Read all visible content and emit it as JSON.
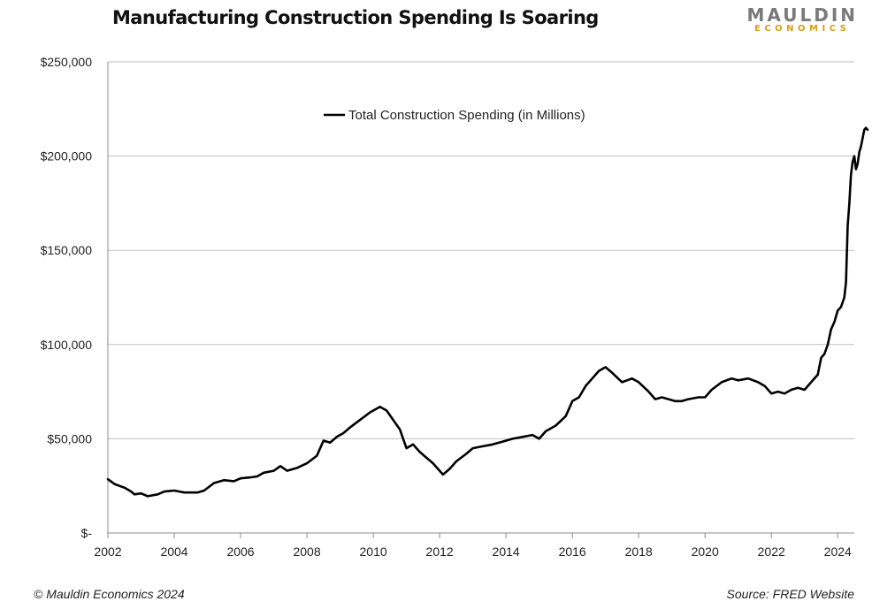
{
  "header": {
    "title": "Manufacturing Construction Spending Is Soaring",
    "logo_top": "MAULDIN",
    "logo_bottom": "ECONOMICS"
  },
  "footer": {
    "copyright": "© Mauldin Economics 2024",
    "source": "Source: FRED Website"
  },
  "colors": {
    "line": "#000000",
    "grid": "#bfbfbf",
    "logo_gray": "#7a7a7a",
    "logo_gold": "#d4a017"
  },
  "chart_data": {
    "type": "line",
    "title": "Manufacturing Construction Spending Is Soaring",
    "xlabel": "",
    "ylabel": "",
    "xlim": [
      2002,
      2024.5
    ],
    "ylim": [
      0,
      250000
    ],
    "grid": true,
    "legend_position": "top-center",
    "y_ticks": [
      0,
      50000,
      100000,
      150000,
      200000,
      250000
    ],
    "y_tick_labels": [
      "$-",
      "$50,000",
      "$100,000",
      "$150,000",
      "$200,000",
      "$250,000"
    ],
    "x_ticks": [
      2002,
      2004,
      2006,
      2008,
      2010,
      2012,
      2014,
      2016,
      2018,
      2020,
      2022,
      2024
    ],
    "x_tick_labels": [
      "2002",
      "2004",
      "2006",
      "2008",
      "2010",
      "2012",
      "2014",
      "2016",
      "2018",
      "2020",
      "2022",
      "2024"
    ],
    "series": [
      {
        "name": "Total Construction Spending (in Millions)",
        "points": [
          [
            2002.0,
            28500
          ],
          [
            2002.2,
            26000
          ],
          [
            2002.5,
            24000
          ],
          [
            2002.7,
            22000
          ],
          [
            2002.8,
            20500
          ],
          [
            2003.0,
            21000
          ],
          [
            2003.2,
            19500
          ],
          [
            2003.5,
            20500
          ],
          [
            2003.7,
            22000
          ],
          [
            2004.0,
            22500
          ],
          [
            2004.3,
            21500
          ],
          [
            2004.7,
            21500
          ],
          [
            2004.9,
            22500
          ],
          [
            2005.2,
            26500
          ],
          [
            2005.5,
            28000
          ],
          [
            2005.8,
            27500
          ],
          [
            2006.0,
            29000
          ],
          [
            2006.3,
            29500
          ],
          [
            2006.5,
            30000
          ],
          [
            2006.7,
            32000
          ],
          [
            2007.0,
            33000
          ],
          [
            2007.2,
            35500
          ],
          [
            2007.4,
            33000
          ],
          [
            2007.7,
            34500
          ],
          [
            2008.0,
            37000
          ],
          [
            2008.3,
            41000
          ],
          [
            2008.5,
            49000
          ],
          [
            2008.7,
            48000
          ],
          [
            2008.9,
            51000
          ],
          [
            2009.1,
            53000
          ],
          [
            2009.3,
            56000
          ],
          [
            2009.6,
            60000
          ],
          [
            2009.9,
            64000
          ],
          [
            2010.2,
            67000
          ],
          [
            2010.4,
            65000
          ],
          [
            2010.6,
            60000
          ],
          [
            2010.8,
            55000
          ],
          [
            2011.0,
            45000
          ],
          [
            2011.2,
            47000
          ],
          [
            2011.4,
            43000
          ],
          [
            2011.6,
            40000
          ],
          [
            2011.8,
            37000
          ],
          [
            2012.0,
            33000
          ],
          [
            2012.1,
            31000
          ],
          [
            2012.3,
            34000
          ],
          [
            2012.5,
            38000
          ],
          [
            2012.8,
            42000
          ],
          [
            2013.0,
            45000
          ],
          [
            2013.3,
            46000
          ],
          [
            2013.6,
            47000
          ],
          [
            2013.9,
            48500
          ],
          [
            2014.2,
            50000
          ],
          [
            2014.5,
            51000
          ],
          [
            2014.8,
            52000
          ],
          [
            2015.0,
            50000
          ],
          [
            2015.2,
            54000
          ],
          [
            2015.5,
            57000
          ],
          [
            2015.8,
            62000
          ],
          [
            2016.0,
            70000
          ],
          [
            2016.2,
            72000
          ],
          [
            2016.4,
            78000
          ],
          [
            2016.6,
            82000
          ],
          [
            2016.8,
            86000
          ],
          [
            2017.0,
            88000
          ],
          [
            2017.2,
            85000
          ],
          [
            2017.5,
            80000
          ],
          [
            2017.8,
            82000
          ],
          [
            2018.0,
            80000
          ],
          [
            2018.3,
            75000
          ],
          [
            2018.5,
            71000
          ],
          [
            2018.7,
            72000
          ],
          [
            2018.9,
            71000
          ],
          [
            2019.1,
            70000
          ],
          [
            2019.3,
            70000
          ],
          [
            2019.5,
            71000
          ],
          [
            2019.8,
            72000
          ],
          [
            2020.0,
            72000
          ],
          [
            2020.2,
            76000
          ],
          [
            2020.5,
            80000
          ],
          [
            2020.8,
            82000
          ],
          [
            2021.0,
            81000
          ],
          [
            2021.3,
            82000
          ],
          [
            2021.6,
            80000
          ],
          [
            2021.8,
            78000
          ],
          [
            2022.0,
            74000
          ],
          [
            2022.2,
            75000
          ],
          [
            2022.4,
            74000
          ],
          [
            2022.6,
            76000
          ],
          [
            2022.8,
            77000
          ],
          [
            2023.0,
            76000
          ],
          [
            2023.2,
            80000
          ],
          [
            2023.4,
            84000
          ],
          [
            2023.5,
            93000
          ],
          [
            2023.6,
            95000
          ],
          [
            2023.7,
            100000
          ],
          [
            2023.8,
            108000
          ],
          [
            2023.9,
            112000
          ],
          [
            2024.0,
            118000
          ],
          [
            2024.1,
            120000
          ],
          [
            2024.2,
            125000
          ],
          [
            2024.25,
            133000
          ],
          [
            2024.3,
            163000
          ],
          [
            2024.35,
            175000
          ],
          [
            2024.4,
            190000
          ],
          [
            2024.45,
            197000
          ],
          [
            2024.5,
            200000
          ],
          [
            2024.55,
            193000
          ],
          [
            2024.6,
            196000
          ],
          [
            2024.65,
            202000
          ],
          [
            2024.7,
            205000
          ],
          [
            2024.8,
            214000
          ],
          [
            2024.85,
            215000
          ],
          [
            2024.9,
            214000
          ]
        ]
      }
    ]
  }
}
